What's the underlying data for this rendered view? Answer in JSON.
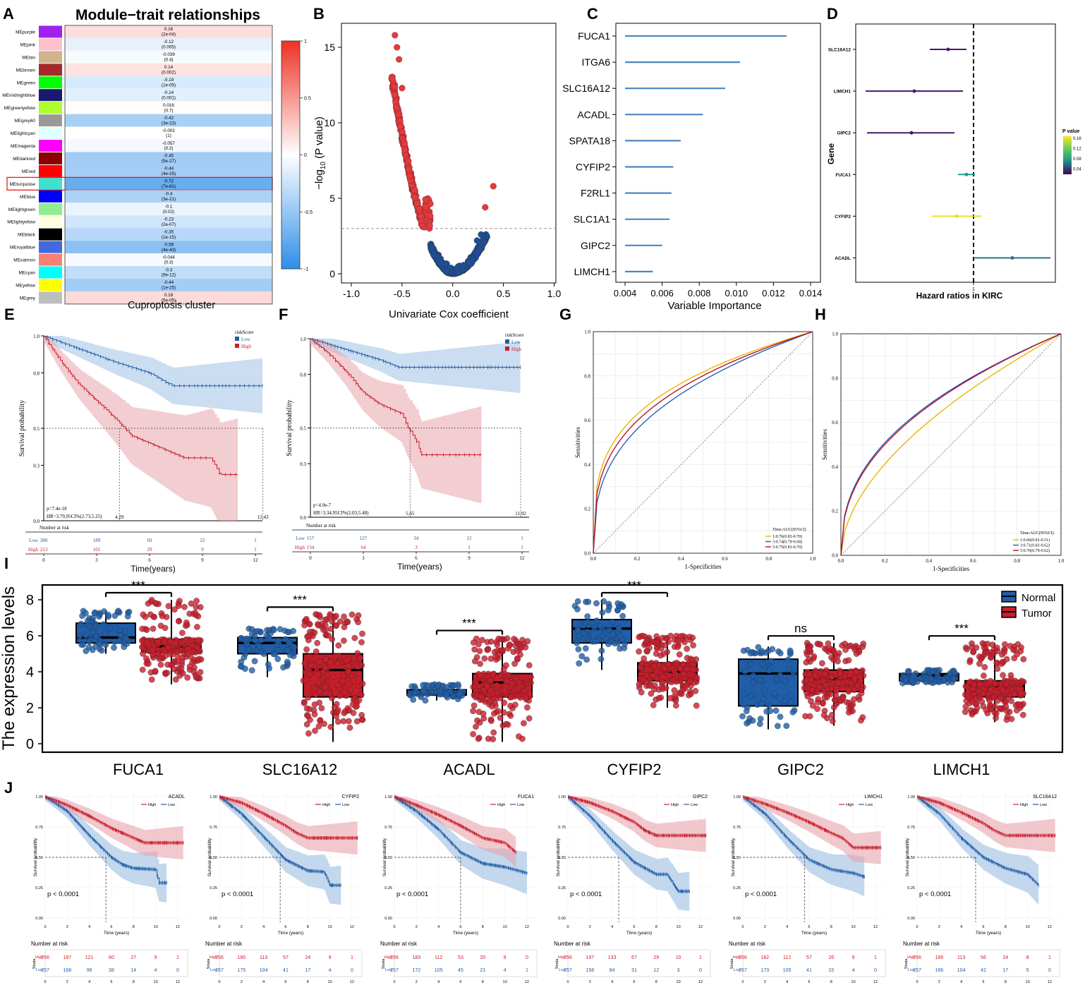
{
  "colors": {
    "red": "#c81e2c",
    "blue": "#1f5ea8",
    "lightred": "#e8a4ac",
    "lightblue": "#a9c6e6",
    "volcano_red": "#e8383b",
    "volcano_blue": "#1f4e96",
    "imp_blue": "#4a86c0",
    "roc_gold": "#e6b800",
    "roc_blue": "#2a62b8",
    "roc_red": "#b5152b"
  },
  "panels": {
    "A": {
      "letter": "A",
      "title": "Module−trait relationships",
      "xlabel": "Cuproptosis cluster",
      "colorbar_ticks": [
        "1",
        "0.5",
        "0",
        "-0.5",
        "-1"
      ],
      "highlight": "MEturquoise",
      "rows": [
        {
          "name": "MEpurple",
          "color": "#a020f0",
          "r": "0.16",
          "p": "(2e-04)",
          "v": 0.16
        },
        {
          "name": "MEpink",
          "color": "#ffc0cb",
          "r": "-0.12",
          "p": "(0.005)",
          "v": -0.12
        },
        {
          "name": "MEtan",
          "color": "#d2b48c",
          "r": "-0.039",
          "p": "(0.4)",
          "v": -0.039
        },
        {
          "name": "MEbrown",
          "color": "#a52a2a",
          "r": "0.14",
          "p": "(0.002)",
          "v": 0.14
        },
        {
          "name": "MEgreen",
          "color": "#00ff00",
          "r": "-0.19",
          "p": "(1e-05)",
          "v": -0.19
        },
        {
          "name": "MEmidnightblue",
          "color": "#191970",
          "r": "-0.14",
          "p": "(0.001)",
          "v": -0.14
        },
        {
          "name": "MEgreenyellow",
          "color": "#adff2f",
          "r": "0.016",
          "p": "(0.7)",
          "v": 0.016
        },
        {
          "name": "MEgrey60",
          "color": "#999999",
          "r": "-0.42",
          "p": "(3e-23)",
          "v": -0.42
        },
        {
          "name": "MElightcyan",
          "color": "#e0ffff",
          "r": "-0.002",
          "p": "(1)",
          "v": -0.002
        },
        {
          "name": "MEmagenta",
          "color": "#ff00ff",
          "r": "-0.057",
          "p": "(0.2)",
          "v": -0.057
        },
        {
          "name": "MEdarkred",
          "color": "#8b0000",
          "r": "-0.45",
          "p": "(5e-27)",
          "v": -0.45
        },
        {
          "name": "MEred",
          "color": "#ff0000",
          "r": "-0.44",
          "p": "(4e-25)",
          "v": -0.44
        },
        {
          "name": "MEturquoise",
          "color": "#40e0d0",
          "r": "-0.72",
          "p": "(7e-81)",
          "v": -0.72
        },
        {
          "name": "MEblue",
          "color": "#0000ff",
          "r": "-0.4",
          "p": "(3e-21)",
          "v": -0.4
        },
        {
          "name": "MElightgreen",
          "color": "#90ee90",
          "r": "-0.1",
          "p": "(0.02)",
          "v": -0.1
        },
        {
          "name": "MElightyellow",
          "color": "#ffffe0",
          "r": "-0.23",
          "p": "(2e-07)",
          "v": -0.23
        },
        {
          "name": "MEblack",
          "color": "#000000",
          "r": "-0.35",
          "p": "(1e-15)",
          "v": -0.35
        },
        {
          "name": "MEroyalblue",
          "color": "#4169e1",
          "r": "-0.56",
          "p": "(4e-43)",
          "v": -0.56
        },
        {
          "name": "MEsalmon",
          "color": "#fa8072",
          "r": "-0.044",
          "p": "(0.3)",
          "v": -0.044
        },
        {
          "name": "MEcyan",
          "color": "#00ffff",
          "r": "-0.3",
          "p": "(9e-12)",
          "v": -0.3
        },
        {
          "name": "MEyellow",
          "color": "#ffff00",
          "r": "-0.44",
          "p": "(1e-25)",
          "v": -0.44
        },
        {
          "name": "MEgrey",
          "color": "#bebebe",
          "r": "0.18",
          "p": "(5e-05)",
          "v": 0.18
        }
      ]
    },
    "B": {
      "letter": "B",
      "xlabel": "Univariate Cox coefficient",
      "ylabel_pre": "−log",
      "ylabel_sub": "10",
      "ylabel_post": " (P value)",
      "xticks": [
        "-1.0",
        "-0.5",
        "0.0",
        "0.5",
        "1.0"
      ],
      "yticks": [
        "0",
        "5",
        "10",
        "15"
      ]
    },
    "C": {
      "letter": "C",
      "xlabel": "Variable Importance",
      "xticks": [
        "0.004",
        "0.006",
        "0.008",
        "0.010",
        "0.012",
        "0.014"
      ],
      "genes": [
        "FUCA1",
        "ITGA6",
        "SLC16A12",
        "ACADL",
        "SPATA18",
        "CYFIP2",
        "F2RL1",
        "SLC1A1",
        "GIPC2",
        "LIMCH1"
      ],
      "values": [
        0.0127,
        0.0102,
        0.0094,
        0.0082,
        0.007,
        0.0066,
        0.0065,
        0.0064,
        0.006,
        0.0055
      ]
    },
    "D": {
      "letter": "D",
      "xlabel": "Hazard ratios in KIRC",
      "ylabel": "Gene",
      "xtick": "1",
      "legend_title": "P value",
      "legend_ticks": [
        "0.16",
        "0.12",
        "0.08",
        "0.04"
      ],
      "genes": [
        "SLC16A12",
        "LIMCH1",
        "GIPC2",
        "FUCA1",
        "CYFIP2",
        "ACADL"
      ]
    },
    "E": {
      "letter": "E",
      "ylabel": "Survival probability",
      "xlabel": "Time(years)",
      "legend_title": "riskScore",
      "legend_low": "Low",
      "legend_high": "High",
      "pval": "p=7.4e-18",
      "hr": "HR=3.79,95CI%(2.73,5.25)",
      "median_low": "12.43",
      "median_high": "4.29",
      "risk_title": "Number at risk",
      "yticks": [
        "1.0",
        "0.8",
        "0.5",
        "0.3",
        "0.0"
      ],
      "xticks": [
        "0",
        "3",
        "6",
        "9",
        "12"
      ],
      "low_counts": [
        "380",
        "189",
        "69",
        "22",
        "1"
      ],
      "high_counts": [
        "213",
        "101",
        "29",
        "9",
        "1"
      ]
    },
    "F": {
      "letter": "F",
      "ylabel": "Survival probability",
      "xlabel": "Time(years)",
      "legend_title": "riskScore",
      "legend_low": "Low",
      "legend_high": "High",
      "pval": "p=4.9e-7",
      "hr": "HR=3.34,95CI%(2.03,5.48)",
      "median_low": "11.92",
      "median_high": "5.65",
      "risk_title": "Number at risk",
      "yticks": [
        "1.0",
        "0.8",
        "0.5",
        "0.3",
        "0.0"
      ],
      "xticks": [
        "0",
        "3",
        "6",
        "9",
        "12"
      ],
      "low_counts": [
        "157",
        "127",
        "34",
        "12",
        "1"
      ],
      "high_counts": [
        "134",
        "64",
        "3",
        "1",
        "1"
      ]
    },
    "G": {
      "letter": "G",
      "ylabel": "Sensitivities",
      "xlabel": "1-Specificities",
      "legend_title": "Time:AUC(95%CI)",
      "legend": [
        "1:0.76(0.83-0.70)",
        "3:0.74(0.79-0.68)",
        "5:0.75(0.81-0.70)"
      ],
      "ticks": [
        "0.0",
        "0.2",
        "0.4",
        "0.6",
        "0.8",
        "1.0"
      ]
    },
    "H": {
      "letter": "H",
      "ylabel": "Sensitivities",
      "xlabel": "1-Specificities",
      "legend_title": "Time:AUC(95%CI)",
      "legend": [
        "1:0.66(0.81-0.51)",
        "3:0.71(0.81-0.62)",
        "5:0.70(0.79-0.62)"
      ],
      "ticks": [
        "0.0",
        "0.2",
        "0.4",
        "0.6",
        "0.8",
        "1.0"
      ]
    },
    "I": {
      "letter": "I",
      "ylabel": "The expression levels",
      "yticks": [
        "0",
        "2",
        "4",
        "6",
        "8"
      ],
      "legend_normal": "Normal",
      "legend_tumor": "Tumor",
      "genes": [
        {
          "name": "FUCA1",
          "sig": "***",
          "normal": {
            "q1": 5.6,
            "med": 5.9,
            "q3": 6.7,
            "lo": 5.0,
            "hi": 7.4
          },
          "tumor": {
            "q1": 5.1,
            "med": 5.4,
            "q3": 5.8,
            "lo": 3.3,
            "hi": 8.0
          }
        },
        {
          "name": "SLC16A12",
          "sig": "***",
          "normal": {
            "q1": 5.0,
            "med": 5.6,
            "q3": 5.9,
            "lo": 3.7,
            "hi": 6.4
          },
          "tumor": {
            "q1": 2.6,
            "med": 4.1,
            "q3": 5.0,
            "lo": 0.1,
            "hi": 7.2
          }
        },
        {
          "name": "ACADL",
          "sig": "***",
          "normal": {
            "q1": 2.7,
            "med": 2.8,
            "q3": 3.0,
            "lo": 2.4,
            "hi": 3.3
          },
          "tumor": {
            "q1": 2.6,
            "med": 3.4,
            "q3": 3.9,
            "lo": 0.1,
            "hi": 5.9
          }
        },
        {
          "name": "CYFIP2",
          "sig": "***",
          "normal": {
            "q1": 5.6,
            "med": 6.4,
            "q3": 6.9,
            "lo": 4.1,
            "hi": 8.0
          },
          "tumor": {
            "q1": 3.5,
            "med": 4.0,
            "q3": 4.5,
            "lo": 2.0,
            "hi": 6.0
          }
        },
        {
          "name": "GIPC2",
          "sig": "ns",
          "normal": {
            "q1": 2.1,
            "med": 3.9,
            "q3": 4.7,
            "lo": 0.8,
            "hi": 5.4
          },
          "tumor": {
            "q1": 2.9,
            "med": 3.6,
            "q3": 4.1,
            "lo": 1.0,
            "hi": 5.6
          }
        },
        {
          "name": "LIMCH1",
          "sig": "***",
          "normal": {
            "q1": 3.5,
            "med": 3.8,
            "q3": 3.9,
            "lo": 3.3,
            "hi": 4.1
          },
          "tumor": {
            "q1": 2.6,
            "med": 3.2,
            "q3": 3.5,
            "lo": 1.2,
            "hi": 5.6
          }
        }
      ]
    },
    "J": {
      "letter": "J",
      "ylabel": "Survival probability",
      "xlabel": "Time (years)",
      "pval": "p < 0.0001",
      "risk_title": "Number at risk",
      "strata": "Strata",
      "legend_high": "High",
      "legend_low": "Low",
      "yticks": [
        "1.00",
        "0.75",
        "0.50",
        "0.25",
        "0.00"
      ],
      "xticks": [
        "0",
        "2",
        "4",
        "6",
        "8",
        "10",
        "12"
      ],
      "plots": [
        {
          "gene": "ACADL",
          "high": [
            "256",
            "187",
            "121",
            "60",
            "27",
            "9",
            "1"
          ],
          "low": [
            "257",
            "168",
            "96",
            "38",
            "14",
            "4",
            "0"
          ]
        },
        {
          "gene": "CYFIP2",
          "high": [
            "256",
            "180",
            "113",
            "57",
            "24",
            "9",
            "1"
          ],
          "low": [
            "257",
            "175",
            "104",
            "41",
            "17",
            "4",
            "0"
          ]
        },
        {
          "gene": "FUCA1",
          "high": [
            "256",
            "183",
            "112",
            "53",
            "20",
            "9",
            "0"
          ],
          "low": [
            "257",
            "172",
            "105",
            "45",
            "21",
            "4",
            "1"
          ]
        },
        {
          "gene": "GIPC2",
          "high": [
            "256",
            "197",
            "133",
            "67",
            "29",
            "10",
            "1"
          ],
          "low": [
            "257",
            "158",
            "84",
            "31",
            "12",
            "3",
            "0"
          ]
        },
        {
          "gene": "LIMCH1",
          "high": [
            "256",
            "182",
            "112",
            "57",
            "26",
            "9",
            "1"
          ],
          "low": [
            "257",
            "173",
            "105",
            "41",
            "15",
            "4",
            "0"
          ]
        },
        {
          "gene": "SLC16A12",
          "high": [
            "256",
            "189",
            "113",
            "56",
            "24",
            "8",
            "1"
          ],
          "low": [
            "257",
            "166",
            "104",
            "42",
            "17",
            "5",
            "0"
          ]
        }
      ]
    }
  }
}
